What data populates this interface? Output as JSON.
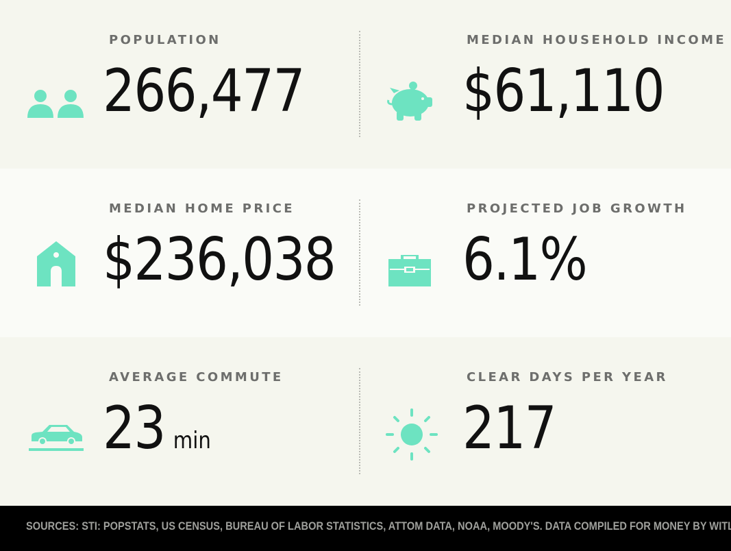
{
  "colors": {
    "accent": "#6de3c1",
    "label": "#6d6e6c",
    "value": "#111111",
    "footer_bg": "#000000",
    "footer_text": "#9fa09c"
  },
  "stats": {
    "population": {
      "label": "POPULATION",
      "value": "266,477",
      "icon": "people-icon"
    },
    "income": {
      "label": "MEDIAN HOUSEHOLD INCOME",
      "value": "$61,110",
      "icon": "piggy-bank-icon"
    },
    "home_price": {
      "label": "MEDIAN HOME PRICE",
      "value": "$236,038",
      "icon": "house-icon"
    },
    "job_growth": {
      "label": "PROJECTED JOB GROWTH",
      "value": "6.1%",
      "icon": "briefcase-icon"
    },
    "commute": {
      "label": "AVERAGE COMMUTE",
      "value": "23",
      "unit": "min",
      "icon": "car-icon"
    },
    "clear_days": {
      "label": "CLEAR DAYS PER YEAR",
      "value": "217",
      "icon": "sun-icon"
    }
  },
  "footer": {
    "sources": "SOURCES: STI: POPSTATS, US CENSUS, BUREAU OF LABOR STATISTICS, ATTOM DATA, NOAA, MOODY'S. DATA COMPILED FOR MONEY BY WITLYTIC."
  }
}
